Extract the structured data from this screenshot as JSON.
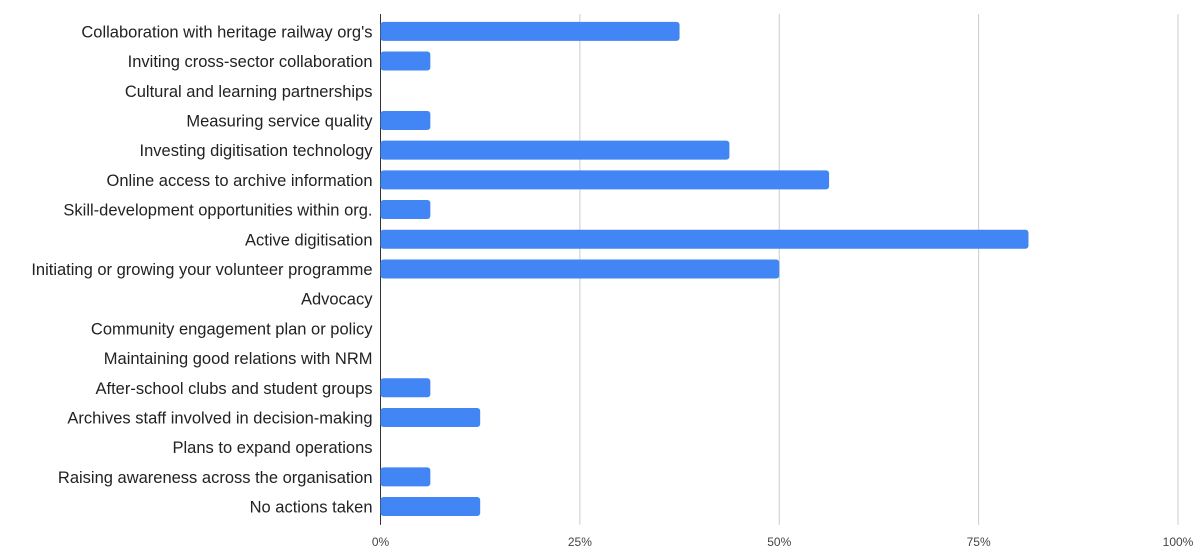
{
  "chart_data": {
    "type": "bar",
    "orientation": "horizontal",
    "categories": [
      "Collaboration with heritage railway org's",
      "Inviting cross-sector collaboration",
      "Cultural and learning partnerships",
      "Measuring service quality",
      "Investing digitisation technology",
      "Online access to archive information",
      "Skill-development opportunities within org.",
      "Active digitisation",
      "Initiating or growing your volunteer programme",
      "Advocacy",
      "Community engagement plan or policy",
      "Maintaining good relations with NRM",
      "After-school clubs and student groups",
      "Archives staff involved in decision-making",
      "Plans to expand operations",
      "Raising awareness across the organisation",
      "No actions taken"
    ],
    "values": [
      37.5,
      6.25,
      0,
      6.25,
      43.75,
      56.25,
      6.25,
      81.25,
      50,
      0,
      0,
      0,
      6.25,
      12.5,
      0,
      6.25,
      12.5
    ],
    "xlim": [
      0,
      100
    ],
    "xticks": [
      0,
      25,
      50,
      75,
      100
    ],
    "xtick_labels": [
      "0%",
      "25%",
      "50%",
      "75%",
      "100%"
    ],
    "bar_color": "#4285f4",
    "grid": true,
    "title": "",
    "xlabel": "",
    "ylabel": ""
  }
}
